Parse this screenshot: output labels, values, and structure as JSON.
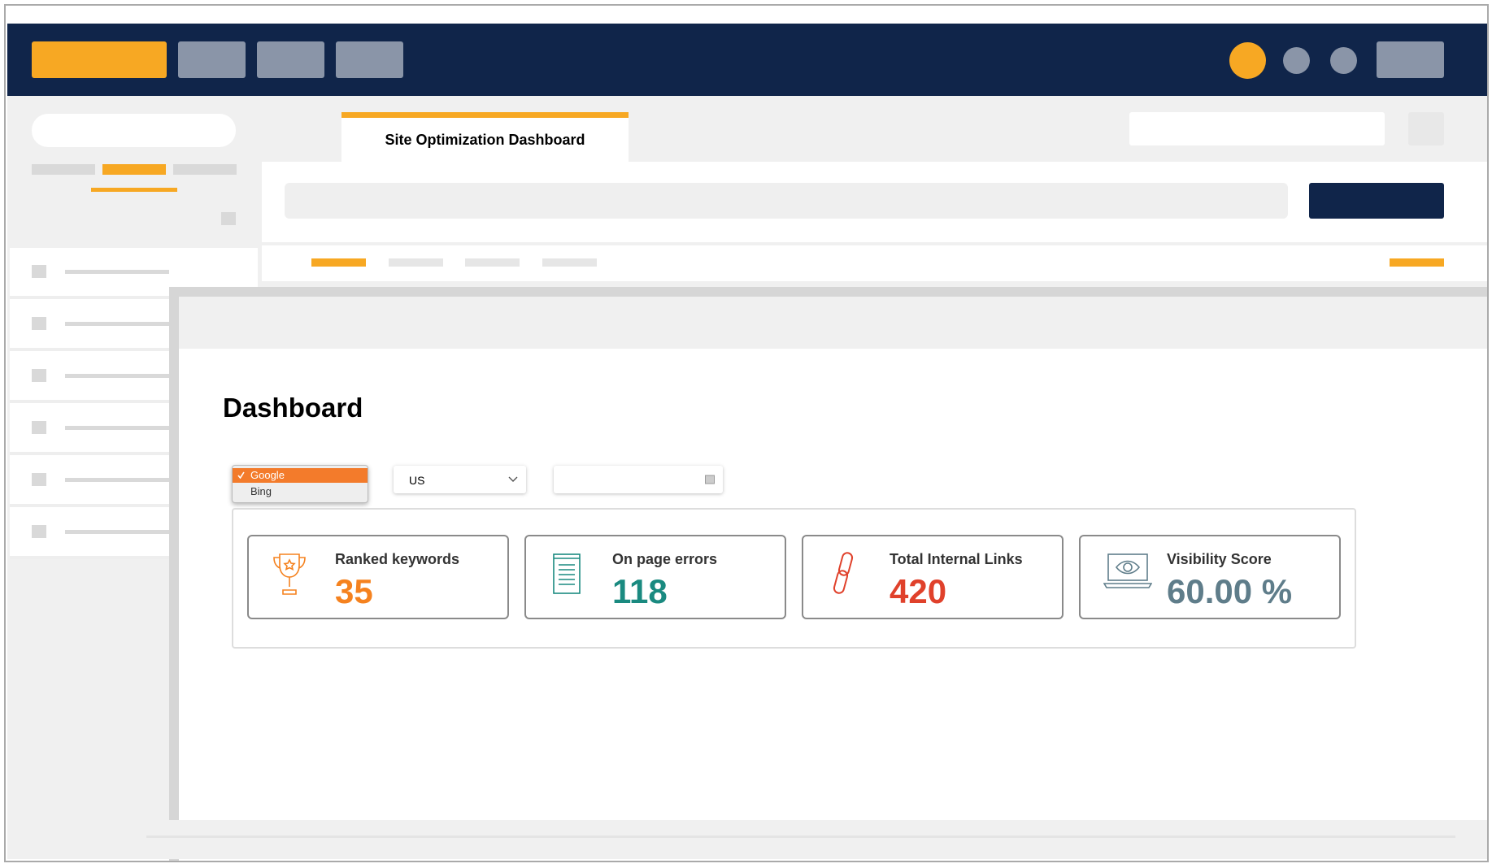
{
  "tab": {
    "title": "Site Optimization Dashboard"
  },
  "page": {
    "heading": "Dashboard"
  },
  "filters": {
    "engine_options": [
      "Google",
      "Bing"
    ],
    "country": "US"
  },
  "cards": [
    {
      "label": "Ranked keywords",
      "value": "35",
      "color": "#f5821f"
    },
    {
      "label": "On page errors",
      "value": "118",
      "color": "#1a8a80"
    },
    {
      "label": "Total Internal Links",
      "value": "420",
      "color": "#e0412b"
    },
    {
      "label": "Visibility Score",
      "value": "60.00 %",
      "color": "#5f7d8a"
    }
  ]
}
